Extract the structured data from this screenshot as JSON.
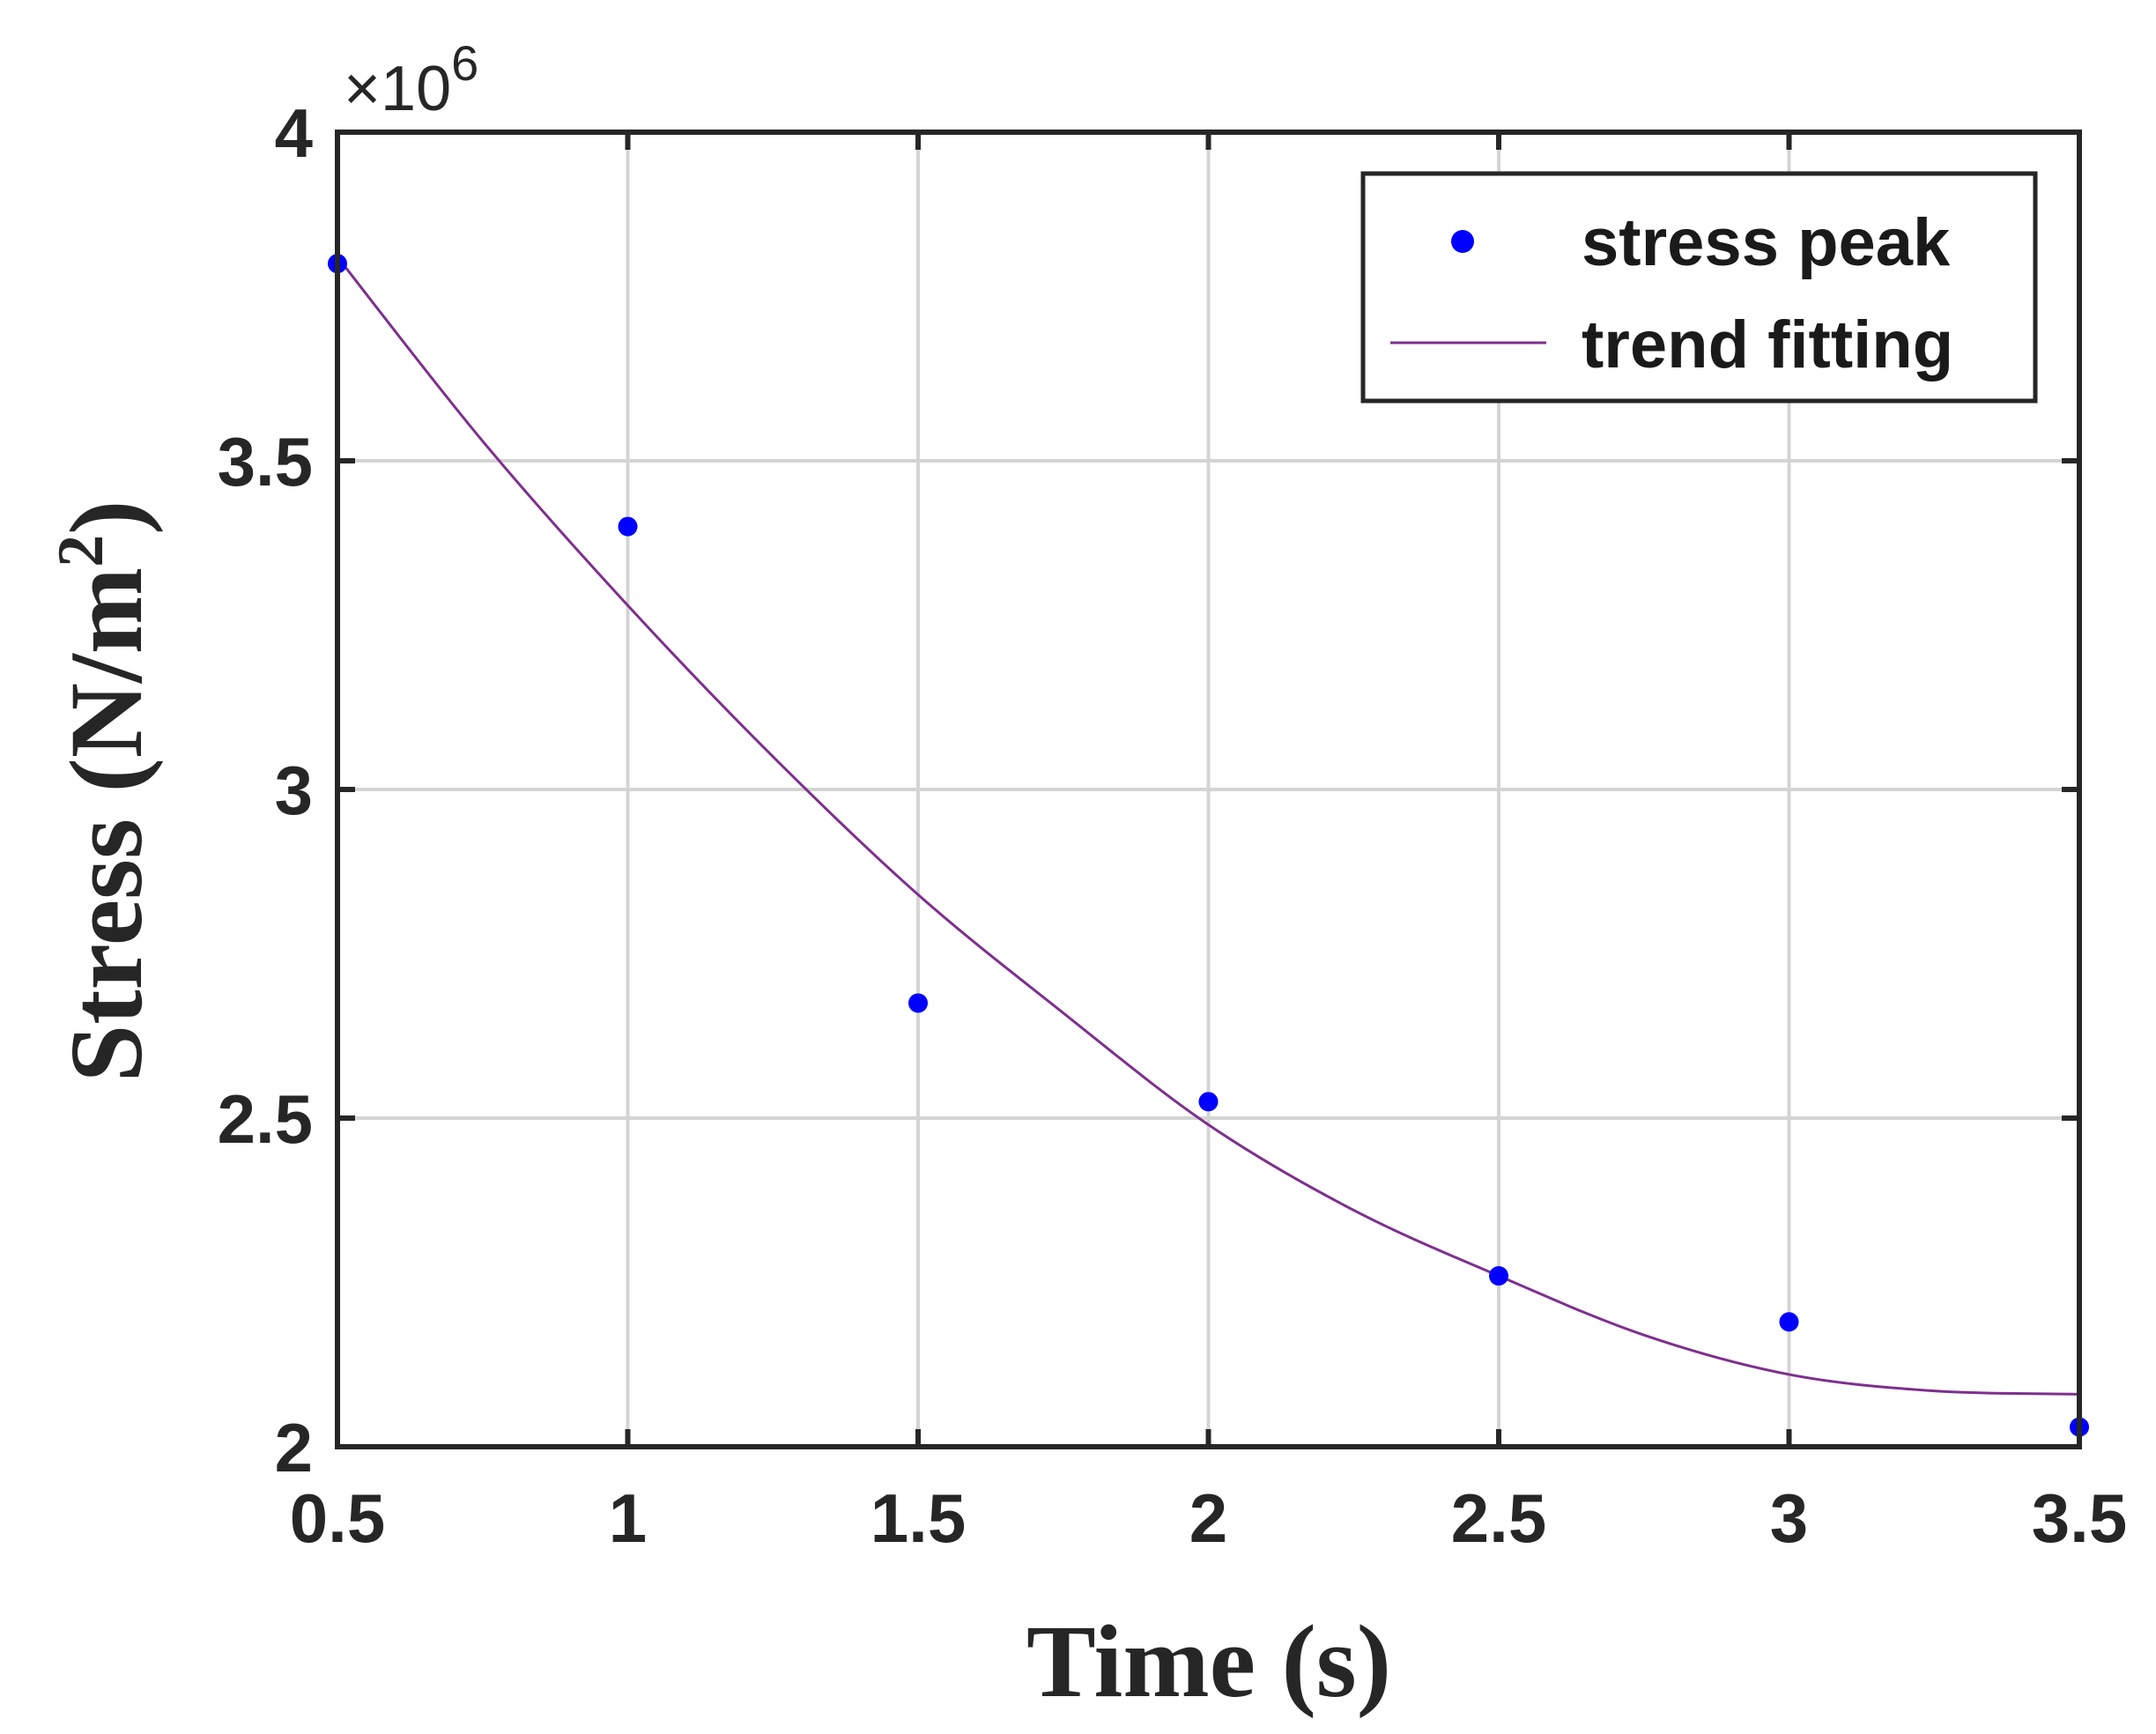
{
  "chart_data": {
    "type": "scatter",
    "title": "",
    "xlabel": "Time (s)",
    "ylabel_main": "Stress (N/m",
    "ylabel_sup": "2",
    "ylabel_close": ")",
    "y_exponent_prefix": "×10",
    "y_exponent_power": "6",
    "xlim": [
      0.5,
      3.5
    ],
    "ylim": [
      2000000,
      4000000
    ],
    "y_scale": 1000000,
    "grid": true,
    "x_ticks": [
      0.5,
      1,
      1.5,
      2,
      2.5,
      3,
      3.5
    ],
    "x_tick_labels": [
      "0.5",
      "1",
      "1.5",
      "2",
      "2.5",
      "3",
      "3.5"
    ],
    "y_ticks": [
      2000000,
      2500000,
      3000000,
      3500000,
      4000000
    ],
    "y_tick_labels": [
      "2",
      "2.5",
      "3",
      "3.5",
      "4"
    ],
    "legend_position": "top-right",
    "series": [
      {
        "name": "stress peak",
        "kind": "points",
        "color": "#0000ff",
        "x": [
          0.5,
          1.0,
          1.5,
          2.0,
          2.5,
          3.0,
          3.5
        ],
        "y": [
          3800000,
          3400000,
          2675000,
          2525000,
          2260000,
          2190000,
          2030000
        ]
      },
      {
        "name": "trend fitting",
        "kind": "line",
        "color": "#7e2f8e",
        "x": [
          0.5,
          0.75,
          1.0,
          1.25,
          1.5,
          1.75,
          2.0,
          2.25,
          2.5,
          2.75,
          3.0,
          3.25,
          3.5
        ],
        "y": [
          3810000,
          3530000,
          3280000,
          3050000,
          2840000,
          2660000,
          2490000,
          2360000,
          2260000,
          2170000,
          2110000,
          2085000,
          2080000
        ]
      }
    ]
  }
}
